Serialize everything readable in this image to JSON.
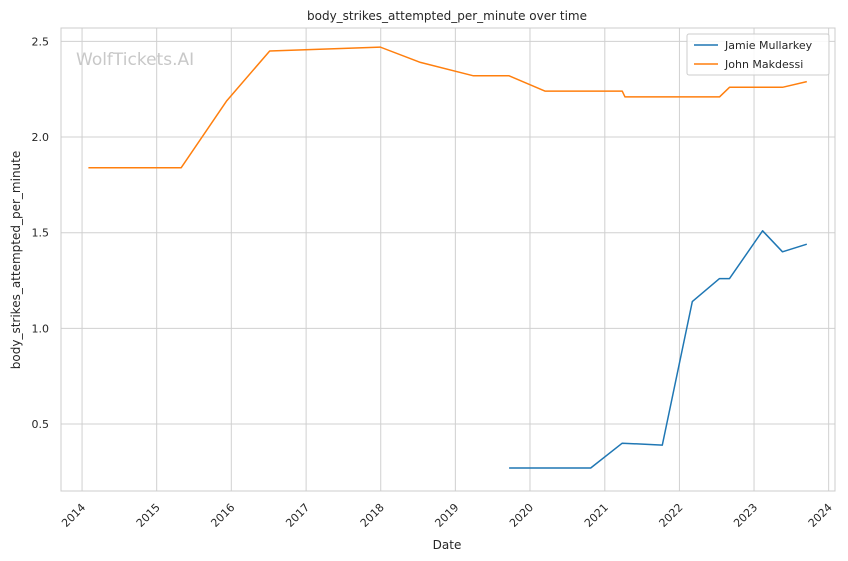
{
  "watermark": "WolfTickets.AI",
  "chart_data": {
    "type": "line",
    "title": "body_strikes_attempted_per_minute over time",
    "xlabel": "Date",
    "ylabel": "body_strikes_attempted_per_minute",
    "xlim": [
      "2013-09-20",
      "2024-02-01"
    ],
    "ylim": [
      0.15,
      2.57
    ],
    "x_ticks": [
      "2014",
      "2015",
      "2016",
      "2017",
      "2018",
      "2019",
      "2020",
      "2021",
      "2022",
      "2023",
      "2024"
    ],
    "y_ticks": [
      "0.5",
      "1.0",
      "1.5",
      "2.0",
      "2.5"
    ],
    "grid": true,
    "legend_position": "top-right",
    "series": [
      {
        "name": "Jamie Mullarkey",
        "color": "#1f77b4",
        "points": [
          {
            "x": "2019-09-21",
            "y": 0.27
          },
          {
            "x": "2020-10-24",
            "y": 0.27
          },
          {
            "x": "2021-03-27",
            "y": 0.4
          },
          {
            "x": "2021-10-09",
            "y": 0.39
          },
          {
            "x": "2022-03-05",
            "y": 1.14
          },
          {
            "x": "2022-07-16",
            "y": 1.26
          },
          {
            "x": "2022-09-03",
            "y": 1.26
          },
          {
            "x": "2023-02-12",
            "y": 1.51
          },
          {
            "x": "2023-05-20",
            "y": 1.4
          },
          {
            "x": "2023-09-16",
            "y": 1.44
          }
        ]
      },
      {
        "name": "John Makdessi",
        "color": "#ff7f0e",
        "points": [
          {
            "x": "2014-02-01",
            "y": 1.84
          },
          {
            "x": "2015-05-01",
            "y": 1.84
          },
          {
            "x": "2015-12-10",
            "y": 2.19
          },
          {
            "x": "2016-07-07",
            "y": 2.45
          },
          {
            "x": "2017-12-30",
            "y": 2.47
          },
          {
            "x": "2018-07-14",
            "y": 2.39
          },
          {
            "x": "2019-03-30",
            "y": 2.32
          },
          {
            "x": "2019-09-21",
            "y": 2.32
          },
          {
            "x": "2020-03-14",
            "y": 2.24
          },
          {
            "x": "2021-03-27",
            "y": 2.24
          },
          {
            "x": "2021-04-10",
            "y": 2.21
          },
          {
            "x": "2022-07-16",
            "y": 2.21
          },
          {
            "x": "2022-09-03",
            "y": 2.26
          },
          {
            "x": "2023-05-20",
            "y": 2.26
          },
          {
            "x": "2023-09-16",
            "y": 2.29
          }
        ]
      }
    ]
  }
}
